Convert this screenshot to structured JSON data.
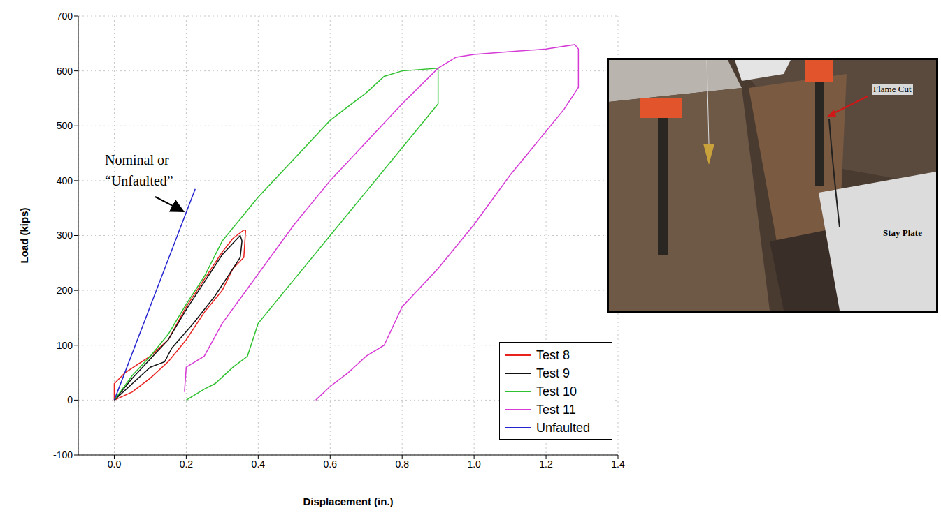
{
  "chart_data": {
    "type": "line",
    "x_label": "Displacement (in.)",
    "y_label": "Load (kips)",
    "xlim": [
      -0.1,
      1.4
    ],
    "xticks": [
      {
        "value": 0,
        "label": "0.0"
      },
      0.2,
      0.4,
      0.6,
      0.8,
      {
        "value": 1,
        "label": "1.0"
      },
      1.2,
      1.4
    ],
    "ylim": [
      -100,
      700
    ],
    "yticks": [
      -100,
      0,
      100,
      200,
      300,
      400,
      500,
      600,
      700
    ],
    "grid": true,
    "legend": "lower right",
    "annotations": [
      "Nominal or",
      "“Unfaulted”"
    ],
    "series": [
      {
        "name": "Test 8",
        "color": "#e8211d",
        "x": [
          0,
          0,
          0.03,
          0.1,
          0.15,
          0.2,
          0.25,
          0.3,
          0.33,
          0.36,
          0.365,
          0.36,
          0.33,
          0.3,
          0.25,
          0.2,
          0.15,
          0.1,
          0.05,
          0
        ],
        "values": [
          0,
          30,
          50,
          80,
          110,
          170,
          220,
          270,
          295,
          310,
          310,
          260,
          240,
          200,
          160,
          110,
          70,
          40,
          15,
          0
        ]
      },
      {
        "name": "Test 9",
        "color": "#111111",
        "x": [
          0,
          0.05,
          0.1,
          0.15,
          0.2,
          0.25,
          0.3,
          0.35,
          0.355,
          0.35,
          0.32,
          0.28,
          0.22,
          0.16,
          0.14,
          0.1,
          0.05,
          0
        ],
        "values": [
          0,
          40,
          75,
          110,
          165,
          215,
          265,
          300,
          290,
          260,
          230,
          190,
          140,
          95,
          70,
          60,
          30,
          0
        ]
      },
      {
        "name": "Test 10",
        "color": "#2fc12f",
        "x": [
          0,
          0.05,
          0.1,
          0.15,
          0.2,
          0.25,
          0.3,
          0.4,
          0.5,
          0.6,
          0.7,
          0.75,
          0.8,
          0.9,
          0.9,
          0.85,
          0.8,
          0.7,
          0.6,
          0.5,
          0.4,
          0.37,
          0.33,
          0.28,
          0.25,
          0.2
        ],
        "values": [
          0,
          45,
          80,
          120,
          175,
          225,
          290,
          370,
          440,
          510,
          560,
          590,
          600,
          605,
          540,
          500,
          460,
          380,
          300,
          220,
          140,
          80,
          60,
          30,
          20,
          0
        ]
      },
      {
        "name": "Test 11",
        "color": "#d63ad6",
        "x": [
          0.195,
          0.2,
          0.25,
          0.3,
          0.4,
          0.5,
          0.6,
          0.7,
          0.8,
          0.9,
          0.95,
          1,
          1.1,
          1.2,
          1.28,
          1.29,
          1.29,
          1.25,
          1.2,
          1.1,
          1,
          0.9,
          0.8,
          0.75,
          0.7,
          0.65,
          0.6,
          0.56
        ],
        "values": [
          15,
          60,
          80,
          140,
          230,
          320,
          400,
          470,
          540,
          605,
          625,
          630,
          635,
          640,
          648,
          640,
          570,
          530,
          490,
          410,
          320,
          240,
          170,
          100,
          80,
          50,
          25,
          0
        ]
      },
      {
        "name": "Unfaulted",
        "color": "#2323d0",
        "x": [
          0,
          0.225
        ],
        "values": [
          0,
          385
        ]
      }
    ]
  },
  "photo": {
    "labels": [
      "Flame Cut",
      "Stay Plate"
    ]
  }
}
